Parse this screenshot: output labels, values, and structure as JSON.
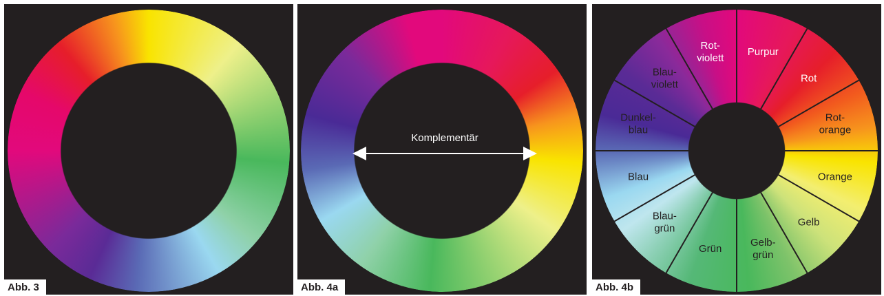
{
  "panels": [
    {
      "caption": "Abb. 3"
    },
    {
      "caption": "Abb. 4a",
      "annotation": "Komplementär"
    },
    {
      "caption": "Abb. 4b",
      "segments": [
        {
          "lines": [
            "Purpur"
          ]
        },
        {
          "lines": [
            "Rot"
          ]
        },
        {
          "lines": [
            "Rot-",
            "orange"
          ]
        },
        {
          "lines": [
            "Orange"
          ]
        },
        {
          "lines": [
            "Gelb"
          ]
        },
        {
          "lines": [
            "Gelb-",
            "grün"
          ]
        },
        {
          "lines": [
            "Grün"
          ]
        },
        {
          "lines": [
            "Blau-",
            "grün"
          ]
        },
        {
          "lines": [
            "Blau"
          ]
        },
        {
          "lines": [
            "Dunkel-",
            "blau"
          ]
        },
        {
          "lines": [
            "Blau-",
            "violett"
          ]
        },
        {
          "lines": [
            "Rot-",
            "violett"
          ]
        }
      ]
    }
  ]
}
